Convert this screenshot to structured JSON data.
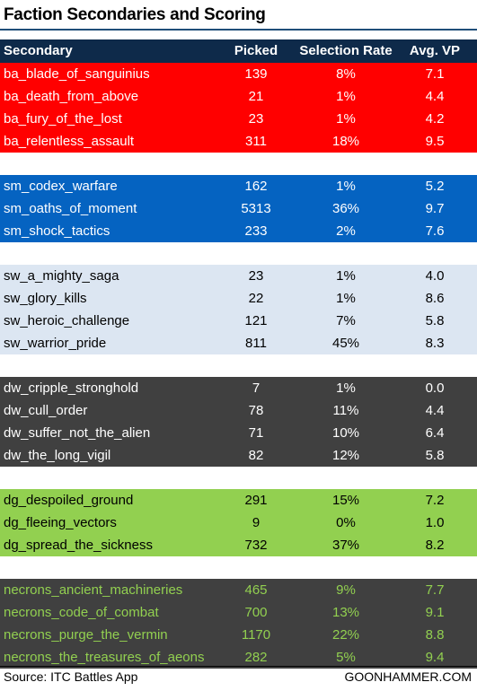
{
  "title": "Faction Secondaries and Scoring",
  "source": "Source: ITC Battles App",
  "brand": "GOONHAMMER.COM",
  "colors": {
    "header_bg": "#0e2a4a",
    "ba": "#ff0000",
    "sm": "#0563c1",
    "sw": "#dce6f2",
    "dw": "#404040",
    "dg": "#92d050",
    "necrons": "#404040",
    "necrons_text": "#92d050"
  },
  "chart_data": {
    "type": "table",
    "columns": [
      "Secondary",
      "Picked",
      "Selection Rate",
      "Avg. VP"
    ],
    "groups": [
      {
        "bg": "#ff0000",
        "fg": "#ffffff",
        "rows": [
          [
            "ba_blade_of_sanguinius",
            "139",
            "8%",
            "7.1"
          ],
          [
            "ba_death_from_above",
            "21",
            "1%",
            "4.4"
          ],
          [
            "ba_fury_of_the_lost",
            "23",
            "1%",
            "4.2"
          ],
          [
            "ba_relentless_assault",
            "311",
            "18%",
            "9.5"
          ]
        ]
      },
      {
        "bg": "#0563c1",
        "fg": "#ffffff",
        "rows": [
          [
            "sm_codex_warfare",
            "162",
            "1%",
            "5.2"
          ],
          [
            "sm_oaths_of_moment",
            "5313",
            "36%",
            "9.7"
          ],
          [
            "sm_shock_tactics",
            "233",
            "2%",
            "7.6"
          ]
        ]
      },
      {
        "bg": "#dce6f2",
        "fg": "#000000",
        "rows": [
          [
            "sw_a_mighty_saga",
            "23",
            "1%",
            "4.0"
          ],
          [
            "sw_glory_kills",
            "22",
            "1%",
            "8.6"
          ],
          [
            "sw_heroic_challenge",
            "121",
            "7%",
            "5.8"
          ],
          [
            "sw_warrior_pride",
            "811",
            "45%",
            "8.3"
          ]
        ]
      },
      {
        "bg": "#404040",
        "fg": "#ffffff",
        "rows": [
          [
            "dw_cripple_stronghold",
            "7",
            "1%",
            "0.0"
          ],
          [
            "dw_cull_order",
            "78",
            "11%",
            "4.4"
          ],
          [
            "dw_suffer_not_the_alien",
            "71",
            "10%",
            "6.4"
          ],
          [
            "dw_the_long_vigil",
            "82",
            "12%",
            "5.8"
          ]
        ]
      },
      {
        "bg": "#92d050",
        "fg": "#000000",
        "rows": [
          [
            "dg_despoiled_ground",
            "291",
            "15%",
            "7.2"
          ],
          [
            "dg_fleeing_vectors",
            "9",
            "0%",
            "1.0"
          ],
          [
            "dg_spread_the_sickness",
            "732",
            "37%",
            "8.2"
          ]
        ]
      },
      {
        "bg": "#404040",
        "fg": "#92d050",
        "rows": [
          [
            "necrons_ancient_machineries",
            "465",
            "9%",
            "7.7"
          ],
          [
            "necrons_code_of_combat",
            "700",
            "13%",
            "9.1"
          ],
          [
            "necrons_purge_the_vermin",
            "1170",
            "22%",
            "8.8"
          ],
          [
            "necrons_the_treasures_of_aeons",
            "282",
            "5%",
            "9.4"
          ]
        ]
      }
    ]
  }
}
